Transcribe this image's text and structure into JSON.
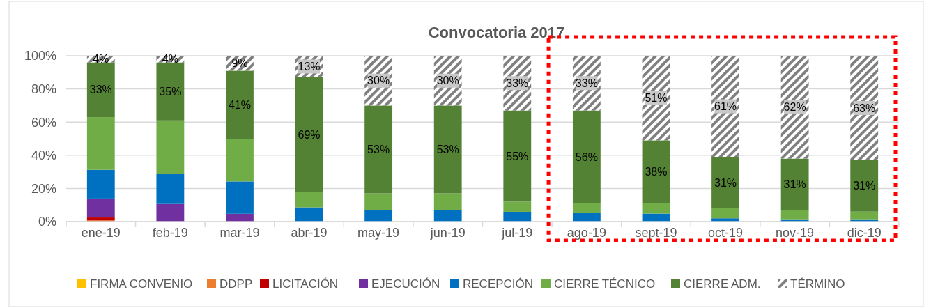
{
  "chart_data": {
    "type": "bar",
    "title": "Convocatoria 2017",
    "stacked": true,
    "categories": [
      "ene-19",
      "feb-19",
      "mar-19",
      "abr-19",
      "may-19",
      "jun-19",
      "jul-19",
      "ago-19",
      "sept-19",
      "oct-19",
      "nov-19",
      "dic-19"
    ],
    "series": [
      {
        "name": "FIRMA CONVENIO",
        "color": "#ffc000",
        "values": [
          0,
          0,
          0,
          0,
          0,
          0,
          0,
          0,
          0,
          0,
          0,
          0
        ]
      },
      {
        "name": "DDPP",
        "color": "#ed7d31",
        "values": [
          0.7,
          0,
          0,
          0,
          0,
          0,
          0,
          0,
          0,
          0,
          0,
          0
        ]
      },
      {
        "name": "LICITACIÓN",
        "color": "#c00000",
        "values": [
          1.8,
          0,
          0,
          0,
          0,
          0,
          0,
          0,
          0,
          0,
          0,
          0
        ]
      },
      {
        "name": "EJECUCIÓN",
        "color": "#7030a0",
        "values": [
          11.4,
          10.6,
          4.7,
          null,
          null,
          null,
          null,
          null,
          0,
          0,
          0,
          0
        ]
      },
      {
        "name": "RECEPCIÓN",
        "color": "#0070c0",
        "values": [
          17.3,
          18.2,
          19.5,
          8.6,
          7.1,
          7.1,
          5.9,
          5.2,
          4.8,
          2.0,
          1.4,
          1.4
        ]
      },
      {
        "name": "CIERRE TÉCNICO",
        "color": "#70ad47",
        "values": [
          31.8,
          32.2,
          25.8,
          9.4,
          9.9,
          9.9,
          6.1,
          5.8,
          6.2,
          6.0,
          5.6,
          4.6
        ]
      },
      {
        "name": "CIERRE ADM.",
        "color": "#548235",
        "values": [
          33,
          35,
          41,
          69,
          53,
          53,
          55,
          56,
          38,
          31,
          31,
          31
        ],
        "value_labels": [
          "33%",
          "35%",
          "41%",
          "69%",
          "53%",
          "53%",
          "55%",
          "56%",
          "38%",
          "31%",
          "31%",
          "31%"
        ]
      },
      {
        "name": "TÉRMINO",
        "color": "#808080",
        "values": [
          4,
          4,
          9,
          13,
          30,
          30,
          33,
          33,
          51,
          61,
          62,
          63
        ],
        "value_labels": [
          "4%",
          "4%",
          "9%",
          "13%",
          "30%",
          "30%",
          "33%",
          "33%",
          "51%",
          "61%",
          "62%",
          "63%"
        ]
      }
    ],
    "ylim": [
      0,
      100
    ],
    "yticks": [
      {
        "value": 0,
        "label": "0%"
      },
      {
        "value": 20,
        "label": "20%"
      },
      {
        "value": 40,
        "label": "40%"
      },
      {
        "value": 60,
        "label": "60%"
      },
      {
        "value": 80,
        "label": "80%"
      },
      {
        "value": 100,
        "label": "100%"
      }
    ],
    "grid": "y",
    "legend": "bottom"
  }
}
